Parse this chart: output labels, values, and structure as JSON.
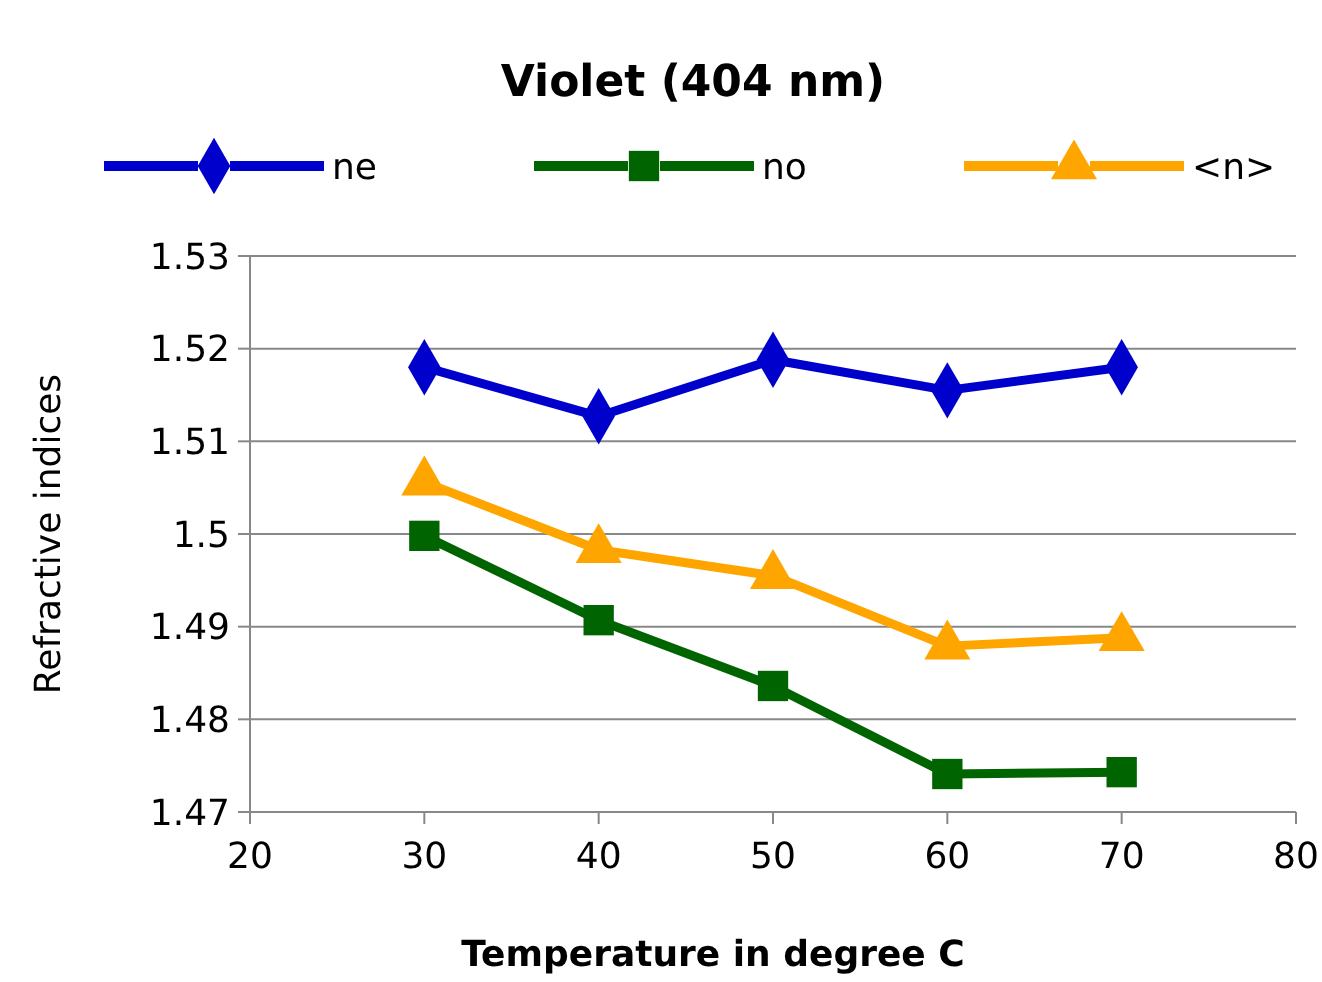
{
  "chart_data": {
    "type": "line",
    "title": "Violet (404 nm)",
    "xlabel": "Temperature in degree C",
    "ylabel": "Refractive indices",
    "x": [
      30,
      40,
      50,
      60,
      70
    ],
    "series": [
      {
        "name": "ne",
        "color": "#0000cc",
        "marker": "diamond",
        "values": [
          1.518,
          1.5127,
          1.5188,
          1.5155,
          1.518
        ]
      },
      {
        "name": "no",
        "color": "#006400",
        "marker": "square",
        "values": [
          1.4998,
          1.4907,
          1.4836,
          1.4741,
          1.4743
        ]
      },
      {
        "name": "<n>",
        "color": "#ffa500",
        "marker": "triangle",
        "values": [
          1.5056,
          1.4983,
          1.4955,
          1.4879,
          1.4888
        ]
      }
    ],
    "xlim": [
      20,
      80
    ],
    "xticks": [
      20,
      30,
      40,
      50,
      60,
      70,
      80
    ],
    "ylim": [
      1.47,
      1.53
    ],
    "yticks": [
      1.47,
      1.48,
      1.49,
      1.5,
      1.51,
      1.52,
      1.53
    ],
    "grid": "y",
    "legend": "top"
  }
}
